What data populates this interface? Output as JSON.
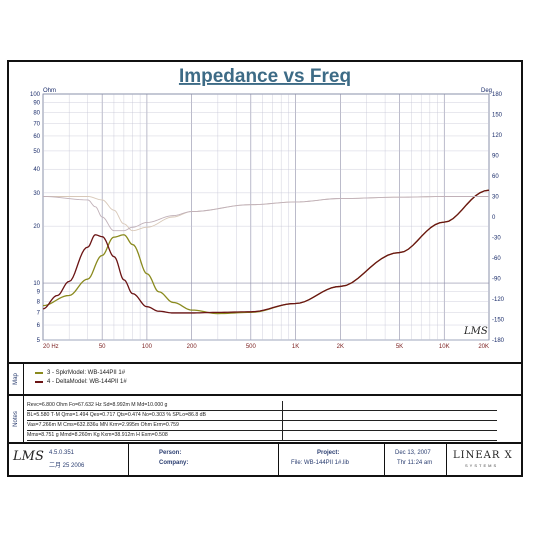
{
  "chart_data": {
    "type": "line",
    "title": "Impedance vs Freq",
    "left_axis": {
      "unit": "Ohm",
      "scale": "log",
      "range": [
        5,
        100
      ],
      "ticks": [
        "100",
        "90",
        "80",
        "70",
        "60",
        "50",
        "40",
        "30",
        "20",
        "10",
        "9",
        "8",
        "7",
        "6",
        "5"
      ]
    },
    "right_axis": {
      "unit": "Deg",
      "range": [
        -180,
        180
      ],
      "ticks": [
        "180",
        "150",
        "120",
        "90",
        "60",
        "30",
        "0",
        "-30",
        "-60",
        "-90",
        "-120",
        "-150",
        "-180"
      ]
    },
    "x_axis": {
      "unit": "Hz",
      "scale": "log",
      "range": [
        20,
        20000
      ],
      "ticks": [
        "20  Hz",
        "50",
        "100",
        "200",
        "500",
        "1K",
        "2K",
        "5K",
        "10K",
        "20K"
      ]
    },
    "series": [
      {
        "name": "SpkrModel: WB-144PII  1#",
        "kind": "impedance",
        "color": "#8a8a1e",
        "x": [
          20,
          30,
          40,
          50,
          60,
          70,
          80,
          100,
          120,
          150,
          200,
          300,
          500,
          1000,
          2000,
          5000,
          10000,
          20000
        ],
        "y": [
          7.6,
          8.6,
          10.5,
          14.0,
          17.5,
          18.0,
          16.0,
          11.2,
          9.0,
          7.9,
          7.2,
          6.9,
          7.0,
          7.8,
          9.6,
          14.5,
          21.0,
          31.0
        ]
      },
      {
        "name": "DeltaModel: WB-144PII  1#",
        "kind": "impedance",
        "color": "#6b1414",
        "x": [
          20,
          25,
          30,
          40,
          45,
          50,
          60,
          70,
          80,
          100,
          120,
          150,
          200,
          300,
          500,
          1000,
          2000,
          5000,
          10000,
          20000
        ],
        "y": [
          7.3,
          8.6,
          10.2,
          15.5,
          18.0,
          17.6,
          13.8,
          10.4,
          8.8,
          7.5,
          7.1,
          6.95,
          6.95,
          7.0,
          7.05,
          7.8,
          9.6,
          14.5,
          21.0,
          31.0
        ]
      },
      {
        "name": "SpkrModel phase",
        "kind": "phase",
        "color": "#d8c8b8",
        "x": [
          20,
          40,
          50,
          60,
          70,
          80,
          100,
          150,
          200,
          500,
          1000,
          2000,
          5000,
          10000,
          20000
        ],
        "y": [
          30,
          30,
          25,
          10,
          -10,
          -20,
          -15,
          0,
          8,
          18,
          22,
          27,
          29,
          30,
          30
        ]
      },
      {
        "name": "DeltaModel phase",
        "kind": "phase",
        "color": "#c0b0b8",
        "x": [
          20,
          40,
          45,
          50,
          60,
          70,
          80,
          100,
          150,
          200,
          500,
          1000,
          2000,
          5000,
          10000,
          20000
        ],
        "y": [
          30,
          25,
          15,
          0,
          -20,
          -20,
          -15,
          -8,
          2,
          8,
          18,
          22,
          27,
          29,
          30,
          30
        ]
      }
    ]
  },
  "panels": {
    "map_label": "Map",
    "notes_label": "Notes",
    "legend": [
      "3 - SpkrModel: WB-144PII  1#",
      "4 - DeltaModel: WB-144PII  1#"
    ],
    "notes": [
      "Revc=6.800 Ohm  Fo=67.632 Hz  Sd=8.992m M    Md=10.000 g",
      "BL=5.580 T·M  Qms=1.494  Qes=0.717  Qts=0.474  No=0.303 %  SPLo=86.8 dB",
      "Vas=7.266m M    Cms=632.836u MN  Krm=2.995m Ohm  Erm=0.759",
      "Mms=8.751 g   Mmd=8.260m Kg  Kxm=38.912m H  Exm=0.508"
    ]
  },
  "footer": {
    "version": "4.5.0.351",
    "date_code": "二月 25 2006",
    "person_label": "Person:",
    "company_label": "Company:",
    "project_label": "Project:",
    "file_value": "File: WB-144PII 1#.lib",
    "date_value": "Dec 13, 2007",
    "time_value": "Thr 11:24 am",
    "brand_text": "LINEAR X",
    "brand_sub": "SYSTEMS",
    "lms_logo": "LMS"
  },
  "chart_mark": "LMS"
}
